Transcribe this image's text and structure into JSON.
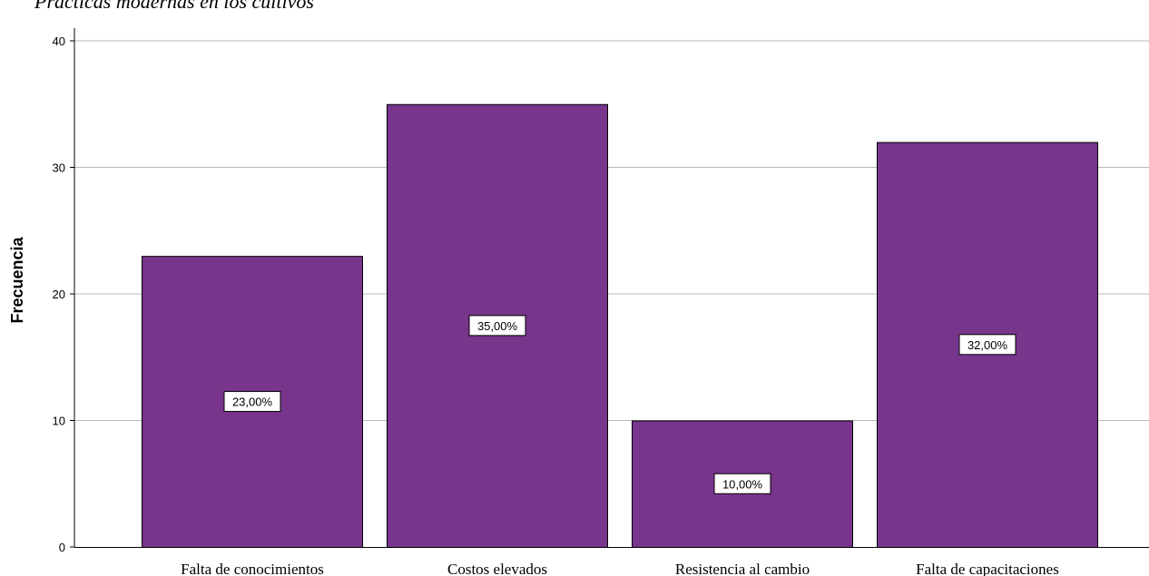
{
  "chart_data": {
    "type": "bar",
    "title": "Prácticas modernas en los cultivos",
    "xlabel": "",
    "ylabel": "Frecuencia",
    "categories": [
      "Falta de conocimientos",
      "Costos elevados",
      "Resistencia al cambio",
      "Falta de capacitaciones"
    ],
    "values": [
      23,
      35,
      10,
      32
    ],
    "data_labels": [
      "23,00%",
      "35,00%",
      "10,00%",
      "32,00%"
    ],
    "ylim": [
      0,
      41
    ],
    "yticks": [
      0,
      10,
      20,
      30,
      40
    ],
    "grid": true,
    "legend": "none",
    "colors": {
      "bar": "#77358c",
      "bar_edge": "#000000",
      "grid": "#b9b9b9"
    }
  }
}
